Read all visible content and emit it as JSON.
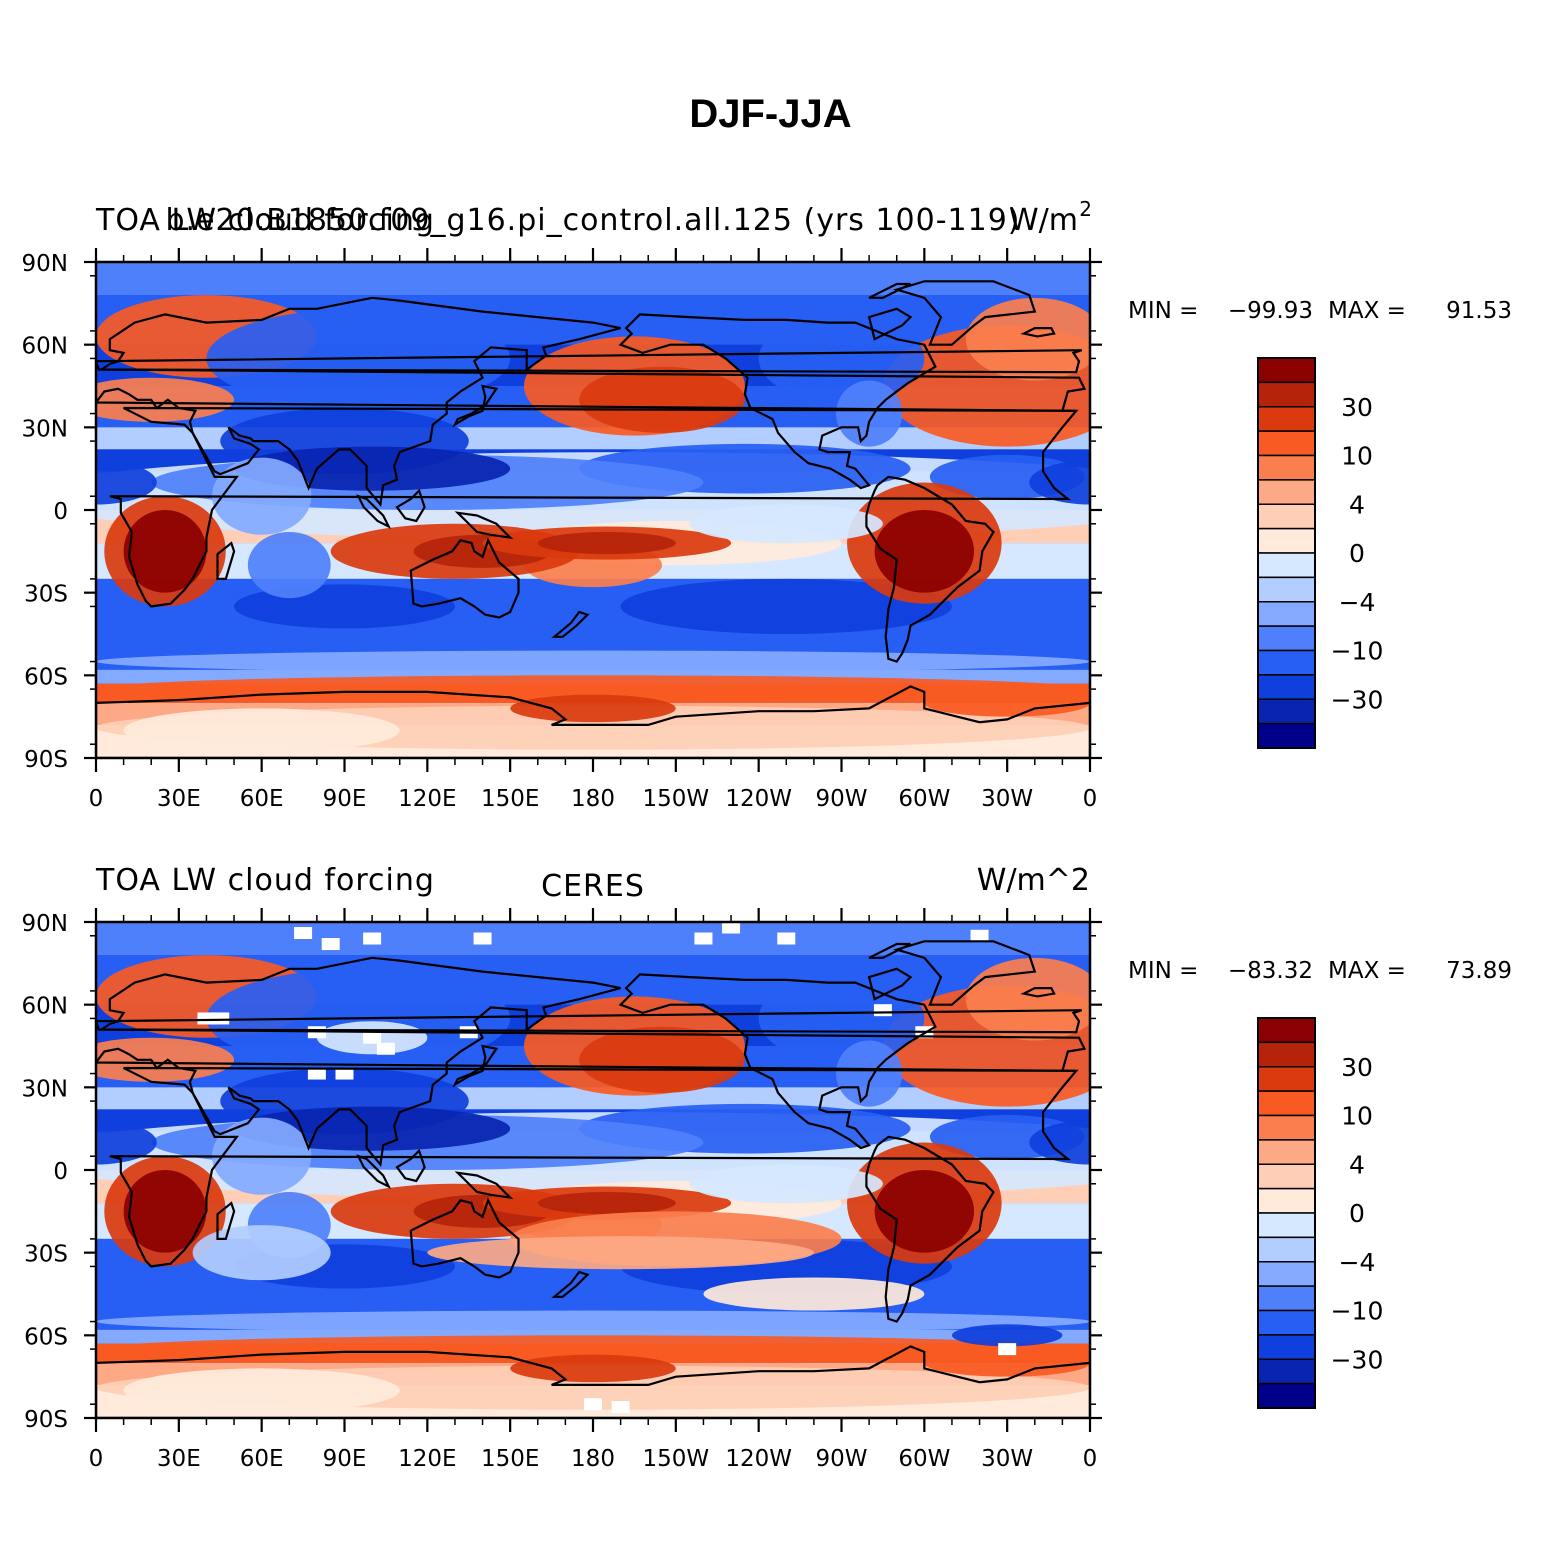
{
  "figure_title": "DJF-JJA",
  "panels": [
    {
      "left_title": "TOA LW cloud forcing",
      "center_title": "b.e20.B1850.f09_g16.pi_control.all.125 (yrs 100-119)",
      "units_base": "W/m",
      "units_sup": "2",
      "min_label": "MIN = ",
      "min_value": "−99.93",
      "max_label": "MAX = ",
      "max_value": "91.53"
    },
    {
      "left_title": "TOA LW cloud forcing",
      "center_title": "CERES",
      "units_base": "W/m^2",
      "units_sup": "",
      "min_label": "MIN = ",
      "min_value": "−83.32",
      "max_label": "MAX = ",
      "max_value": "73.89"
    }
  ],
  "axes": {
    "lat_labels": [
      "90N",
      "60N",
      "30N",
      "0",
      "30S",
      "60S",
      "90S"
    ],
    "lon_labels": [
      "0",
      "30E",
      "60E",
      "90E",
      "120E",
      "150E",
      "180",
      "150W",
      "120W",
      "90W",
      "60W",
      "30W",
      "0"
    ]
  },
  "colorbar": {
    "colors": [
      "#8b0000",
      "#b5240a",
      "#da3a0e",
      "#f95a23",
      "#fb7f4e",
      "#fda985",
      "#fecfb6",
      "#ffeadb",
      "#d6e8ff",
      "#b2cdff",
      "#84aaff",
      "#4f80fb",
      "#275ef3",
      "#0f3fdc",
      "#0924b0",
      "#00008a"
    ],
    "labels": [
      "30",
      "10",
      "4",
      "0",
      "−4",
      "−10",
      "−30"
    ]
  },
  "colors": {
    "strong_positive": "#8b0000",
    "positive": "#da3a0e",
    "near_zero_positive": "#ffeadb",
    "near_zero_negative": "#d6e8ff",
    "negative": "#275ef3",
    "strong_negative": "#00008a",
    "coastline": "#000000"
  }
}
